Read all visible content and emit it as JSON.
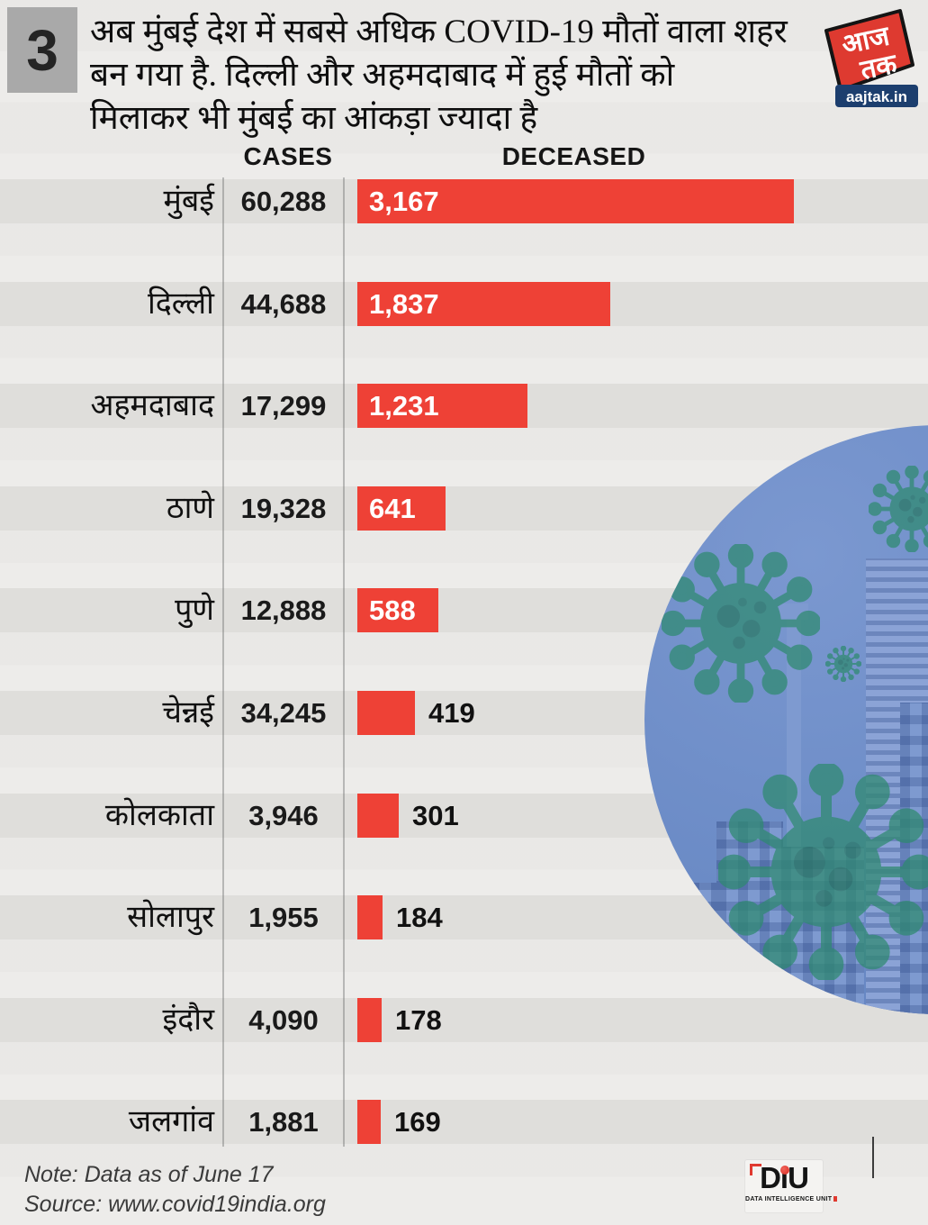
{
  "badge": {
    "number": "3"
  },
  "title": {
    "lines": [
      "अब मुंबई देश में सबसे अधिक COVID-19 मौतों वाला शहर",
      "बन गया है. दिल्ली और अहमदाबाद में हुई मौतों को",
      "मिलाकर भी मुंबई का आंकड़ा ज्यादा है"
    ]
  },
  "logo": {
    "top": "आज",
    "bottom": "तक",
    "site": "aajtak.in"
  },
  "columns": {
    "cases": "CASES",
    "deceased": "DECEASED"
  },
  "rows": [
    {
      "city": "मुंबई",
      "cases": "60,288",
      "deceased": "3,167",
      "deceased_value": 3167
    },
    {
      "city": "दिल्ली",
      "cases": "44,688",
      "deceased": "1,837",
      "deceased_value": 1837
    },
    {
      "city": "अहमदाबाद",
      "cases": "17,299",
      "deceased": "1,231",
      "deceased_value": 1231
    },
    {
      "city": "ठाणे",
      "cases": "19,328",
      "deceased": "641",
      "deceased_value": 641
    },
    {
      "city": "पुणे",
      "cases": "12,888",
      "deceased": "588",
      "deceased_value": 588
    },
    {
      "city": "चेन्नई",
      "cases": "34,245",
      "deceased": "419",
      "deceased_value": 419
    },
    {
      "city": "कोलकाता",
      "cases": "3,946",
      "deceased": "301",
      "deceased_value": 301
    },
    {
      "city": "सोलापुर",
      "cases": "1,955",
      "deceased": "184",
      "deceased_value": 184
    },
    {
      "city": "इंदौर",
      "cases": "4,090",
      "deceased": "178",
      "deceased_value": 178
    },
    {
      "city": "जलगांव",
      "cases": "1,881",
      "deceased": "169",
      "deceased_value": 169
    }
  ],
  "footer": {
    "note": "Note: Data as of June 17",
    "source": "Source: www.covid19india.org"
  },
  "diu": {
    "label": "DiU",
    "subtitle": "DATA INTELLIGENCE UNIT"
  },
  "colors": {
    "bar_red": "#ee4136",
    "row_band": "#dfdedb",
    "background": "#edecea",
    "circle_blue": "#6b8bc6",
    "virus_green": "#2e8a6f",
    "building_blue": "#7e9ad0",
    "logo_red": "#de3a30",
    "logo_navy": "#1c3e6e"
  },
  "chart_data": {
    "type": "bar",
    "orientation": "horizontal",
    "title": "अब मुंबई देश में सबसे अधिक COVID-19 मौतों वाला शहर बन गया है. दिल्ली और अहमदाबाद में हुई मौतों को मिलाकर भी मुंबई का आंकड़ा ज्यादा है",
    "categories": [
      "मुंबई",
      "दिल्ली",
      "अहमदाबाद",
      "ठाणे",
      "पुणे",
      "चेन्नई",
      "कोलकाता",
      "सोलापुर",
      "इंदौर",
      "जलगांव"
    ],
    "series": [
      {
        "name": "CASES",
        "values": [
          60288,
          44688,
          17299,
          19328,
          12888,
          34245,
          3946,
          1955,
          4090,
          1881
        ],
        "display": "text-column"
      },
      {
        "name": "DECEASED",
        "values": [
          3167,
          1837,
          1231,
          641,
          588,
          419,
          301,
          184,
          178,
          169
        ],
        "display": "bars",
        "color": "#ee4136"
      }
    ],
    "xlim": [
      0,
      3300
    ],
    "grid": false,
    "legend_position": "column-headers",
    "note": "Note: Data as of June 17",
    "source": "Source: www.covid19india.org"
  }
}
